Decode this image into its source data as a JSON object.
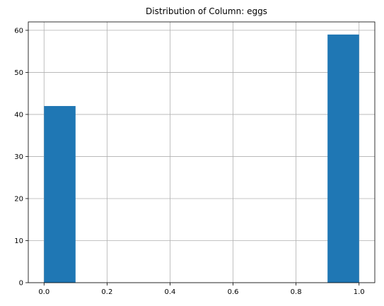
{
  "chart_data": {
    "type": "bar",
    "title": "Distribution of Column: eggs",
    "xlabel": "",
    "ylabel": "",
    "xlim": [
      -0.05,
      1.05
    ],
    "ylim": [
      0,
      62
    ],
    "grid": true,
    "bar_color": "#1f77b4",
    "bins": [
      {
        "x0": 0.0,
        "x1": 0.1,
        "count": 42
      },
      {
        "x0": 0.9,
        "x1": 1.0,
        "count": 59
      }
    ],
    "x_ticks": [
      0.0,
      0.2,
      0.4,
      0.6,
      0.8,
      1.0
    ],
    "x_tick_labels": [
      "0.0",
      "0.2",
      "0.4",
      "0.6",
      "0.8",
      "1.0"
    ],
    "y_ticks": [
      0,
      10,
      20,
      30,
      40,
      50,
      60
    ],
    "y_tick_labels": [
      "0",
      "10",
      "20",
      "30",
      "40",
      "50",
      "60"
    ]
  }
}
